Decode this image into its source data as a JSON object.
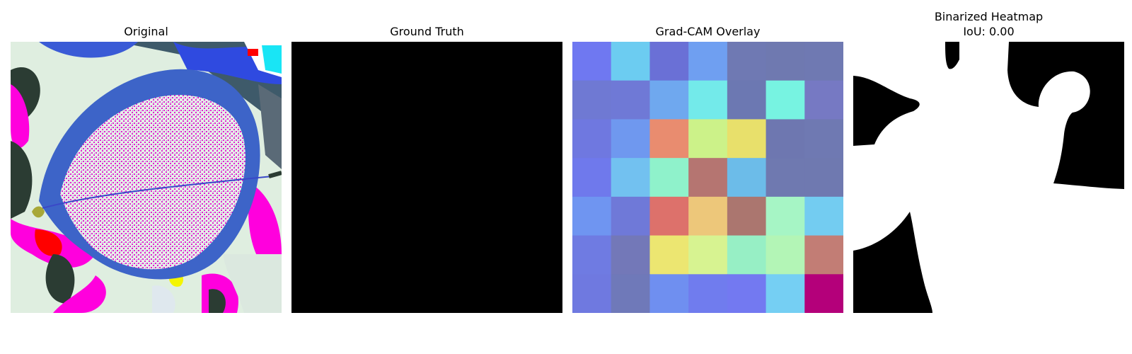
{
  "panels": {
    "original": {
      "title": "Original"
    },
    "ground_truth": {
      "title": "Ground Truth"
    },
    "gradcam": {
      "title": "Grad-CAM Overlay",
      "grid_colors": [
        [
          "#6f78f1",
          "#6cccf1",
          "#6a70d6",
          "#6f9ff1",
          "#6f79b3",
          "#6f79b0",
          "#6f79b2"
        ],
        [
          "#6f79d3",
          "#6f79d6",
          "#6fa8ef",
          "#73eaea",
          "#6c78b2",
          "#77f3e1",
          "#7679c3"
        ],
        [
          "#6f78e0",
          "#6f98ef",
          "#e98c6f",
          "#ccf289",
          "#e8e06b",
          "#6e77b0",
          "#6f79b2"
        ],
        [
          "#6f79ec",
          "#72c1f0",
          "#8ff2cb",
          "#b57571",
          "#6cbce9",
          "#6f79b0",
          "#6f79b0"
        ],
        [
          "#6f95f1",
          "#6f79d8",
          "#dd716b",
          "#edc77a",
          "#ab766f",
          "#a6f5c5",
          "#73ccf1"
        ],
        [
          "#6f7be2",
          "#7378b8",
          "#ece671",
          "#d7f391",
          "#97efc5",
          "#b3f5b6",
          "#c27d75"
        ],
        [
          "#6f79e0",
          "#6f79b9",
          "#6f8ff0",
          "#707cee",
          "#7379f1",
          "#75cff3",
          "#b4007a"
        ]
      ]
    },
    "binarized": {
      "title": "Binarized Heatmap",
      "subtitle": "IoU: 0.00"
    }
  }
}
